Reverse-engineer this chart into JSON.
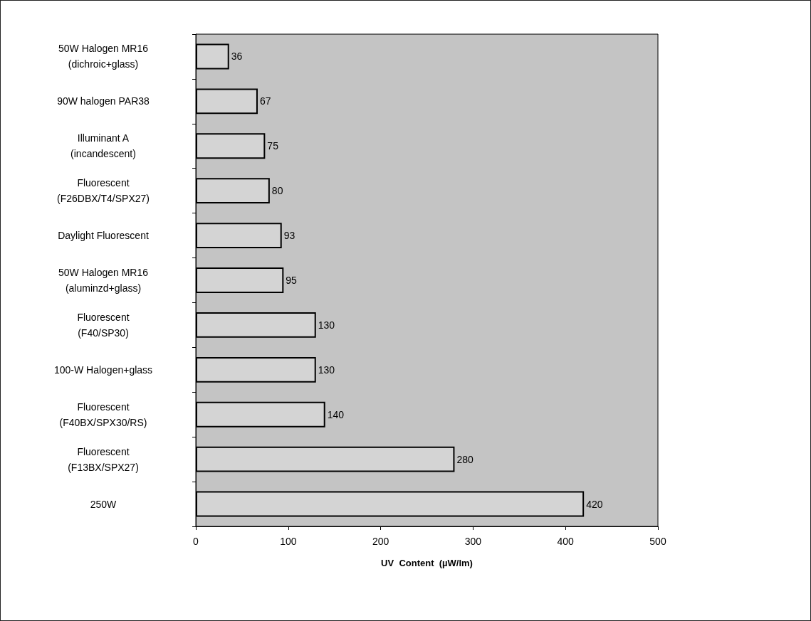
{
  "chart_data": {
    "type": "bar",
    "orientation": "horizontal",
    "xlabel": "UV  Content  (µW/lm)",
    "categories": [
      "50W Halogen MR16\n(dichroic+glass)",
      "90W halogen PAR38",
      "Illuminant A\n(incandescent)",
      "Fluorescent\n(F26DBX/T4/SPX27)",
      "Daylight Fluorescent",
      "50W Halogen MR16\n(aluminzd+glass)",
      "Fluorescent\n(F40/SP30)",
      "100-W Halogen+glass",
      "Fluorescent\n(F40BX/SPX30/RS)",
      "Fluorescent\n(F13BX/SPX27)",
      "250W"
    ],
    "values": [
      36,
      67,
      75,
      80,
      93,
      95,
      130,
      130,
      140,
      280,
      420
    ],
    "color": "#d4d4d4",
    "xlim": [
      0,
      500
    ],
    "xticks": [
      0,
      100,
      200,
      300,
      400,
      500
    ],
    "data_labels": true
  }
}
